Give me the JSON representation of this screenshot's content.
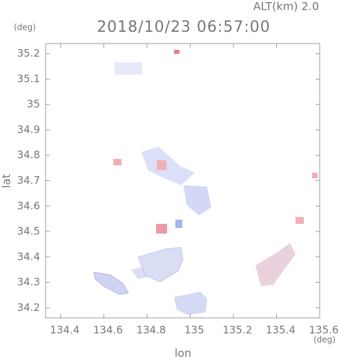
{
  "chart_data": {
    "type": "map",
    "title": "2018/10/23 06:57:00",
    "subtitle": "ALT(km) 2.0",
    "xlabel": "lon",
    "ylabel": "lat",
    "x_unit": "(deg)",
    "y_unit": "(deg)",
    "xlim": [
      134.33,
      135.6
    ],
    "ylim": [
      34.16,
      35.24
    ],
    "xticks": [
      134.4,
      134.6,
      134.8,
      135.0,
      135.2,
      135.4,
      135.6
    ],
    "yticks": [
      34.2,
      34.3,
      34.4,
      34.5,
      34.6,
      34.7,
      34.8,
      34.9,
      35.0,
      35.1,
      35.2
    ]
  }
}
